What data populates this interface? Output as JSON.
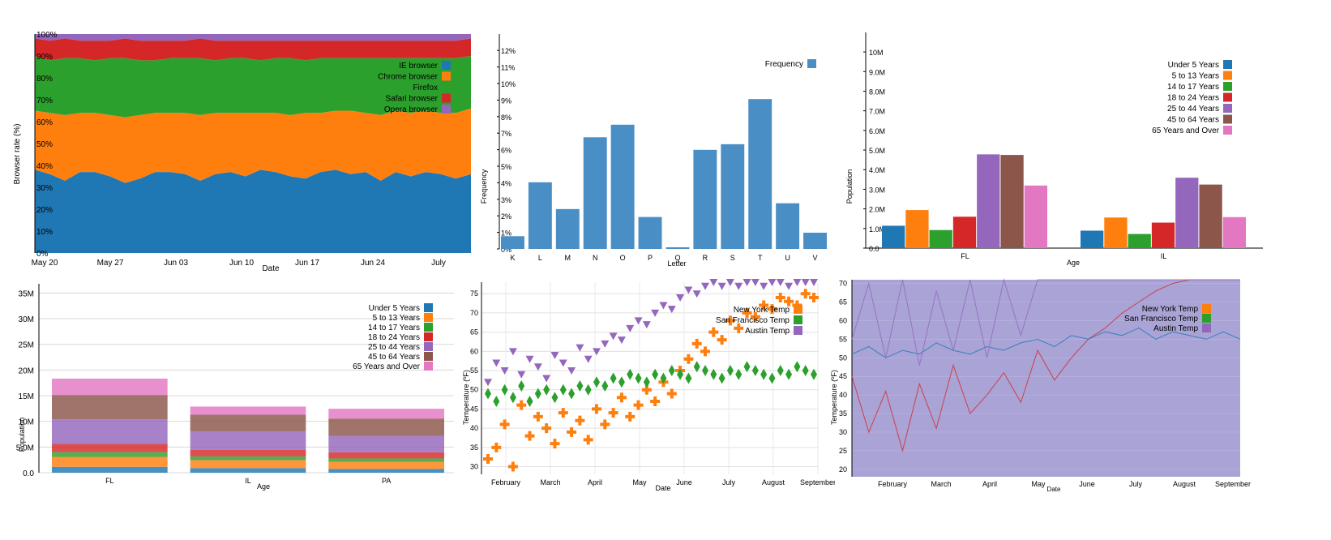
{
  "colors": {
    "blue": "#1f77b4",
    "orange": "#ff7f0e",
    "green": "#2ca02c",
    "red": "#d62728",
    "purple": "#9467bd",
    "brown": "#8c564b",
    "pink": "#e377c2",
    "bar_blue": "#4a8ec6",
    "area_purple": "#a9a3d6"
  },
  "chart_data": [
    {
      "id": "stacked-area",
      "type": "area",
      "xlabel": "Date",
      "ylabel": "Browser rate (%)",
      "x_ticks": [
        "May 20",
        "May 27",
        "Jun 03",
        "Jun 10",
        "Jun 17",
        "Jun 24",
        "July"
      ],
      "y_ticks": [
        "0%",
        "10%",
        "20%",
        "30%",
        "40%",
        "50%",
        "60%",
        "70%",
        "80%",
        "90%",
        "100%"
      ],
      "ylim": [
        0,
        100
      ],
      "series": [
        {
          "name": "IE browser",
          "values": [
            38,
            36,
            33,
            37,
            37,
            35,
            32,
            34,
            37,
            37,
            36,
            33,
            36,
            37,
            35,
            38,
            37,
            35,
            34,
            37,
            38,
            36,
            37,
            33,
            37,
            35,
            37,
            36,
            34,
            36
          ]
        },
        {
          "name": "Chrome browser",
          "values": [
            27,
            28,
            30,
            27,
            27,
            28,
            30,
            29,
            27,
            27,
            28,
            30,
            28,
            27,
            29,
            26,
            27,
            28,
            30,
            27,
            27,
            29,
            27,
            30,
            28,
            29,
            28,
            28,
            30,
            30
          ]
        },
        {
          "name": "Firefox",
          "values": [
            25,
            24,
            26,
            25,
            24,
            26,
            27,
            25,
            24,
            25,
            25,
            26,
            24,
            25,
            25,
            24,
            25,
            26,
            24,
            25,
            24,
            24,
            25,
            26,
            24,
            25,
            24,
            25,
            25,
            24
          ]
        },
        {
          "name": "Safari browser",
          "values": [
            8,
            9,
            9,
            8,
            9,
            8,
            9,
            9,
            9,
            8,
            8,
            9,
            9,
            8,
            8,
            9,
            8,
            8,
            9,
            8,
            8,
            8,
            8,
            8,
            8,
            8,
            8,
            8,
            8,
            8
          ]
        },
        {
          "name": "Opera browser",
          "values": [
            2,
            3,
            2,
            3,
            3,
            3,
            2,
            3,
            3,
            3,
            3,
            2,
            3,
            3,
            3,
            3,
            3,
            3,
            3,
            3,
            3,
            3,
            3,
            3,
            3,
            3,
            3,
            3,
            3,
            2
          ]
        }
      ],
      "legend": "top-right"
    },
    {
      "id": "letter-frequency",
      "type": "bar",
      "xlabel": "Letter",
      "ylabel": "Frequency",
      "categories": [
        "K",
        "L",
        "M",
        "N",
        "O",
        "P",
        "Q",
        "R",
        "S",
        "T",
        "U",
        "V"
      ],
      "values": [
        0.77,
        4.03,
        2.41,
        6.75,
        7.51,
        1.93,
        0.1,
        5.99,
        6.33,
        9.06,
        2.76,
        0.98
      ],
      "y_ticks": [
        "0%",
        "1%",
        "2%",
        "3%",
        "4%",
        "5%",
        "6%",
        "7%",
        "8%",
        "9%",
        "10%",
        "11%",
        "12%"
      ],
      "ylim": [
        0,
        12.5
      ],
      "series_name": "Frequency",
      "legend": "top-right"
    },
    {
      "id": "grouped-bar",
      "type": "bar",
      "xlabel": "Age",
      "ylabel": "Population",
      "categories": [
        "FL",
        "IL"
      ],
      "series": [
        {
          "name": "Under 5 Years",
          "values": [
            1.14,
            0.89
          ]
        },
        {
          "name": "5 to 13 Years",
          "values": [
            1.94,
            1.56
          ]
        },
        {
          "name": "14 to 17 Years",
          "values": [
            0.92,
            0.72
          ]
        },
        {
          "name": "18 to 24 Years",
          "values": [
            1.6,
            1.3
          ]
        },
        {
          "name": "25 to 44 Years",
          "values": [
            4.78,
            3.59
          ]
        },
        {
          "name": "45 to 64 Years",
          "values": [
            4.75,
            3.24
          ]
        },
        {
          "name": "65 Years and Over",
          "values": [
            3.19,
            1.58
          ]
        }
      ],
      "y_ticks": [
        "0.0",
        "1.0M",
        "2.0M",
        "3.0M",
        "4.0M",
        "5.0M",
        "6.0M",
        "7.0M",
        "8.0M",
        "9.0M",
        "10M"
      ],
      "ylim": [
        0,
        10.5
      ],
      "legend": "top-right"
    },
    {
      "id": "stacked-bar",
      "type": "bar",
      "xlabel": "Age",
      "ylabel": "Population",
      "categories": [
        "FL",
        "IL",
        "PA"
      ],
      "series": [
        {
          "name": "Under 5 Years",
          "values": [
            1.14,
            0.89,
            0.74
          ]
        },
        {
          "name": "5 to 13 Years",
          "values": [
            1.94,
            1.56,
            1.35
          ]
        },
        {
          "name": "14 to 17 Years",
          "values": [
            0.92,
            0.72,
            0.68
          ]
        },
        {
          "name": "18 to 24 Years",
          "values": [
            1.6,
            1.3,
            1.2
          ]
        },
        {
          "name": "25 to 44 Years",
          "values": [
            4.78,
            3.59,
            3.16
          ]
        },
        {
          "name": "45 to 64 Years",
          "values": [
            4.75,
            3.24,
            3.41
          ]
        },
        {
          "name": "65 Years and Over",
          "values": [
            3.19,
            1.58,
            1.91
          ]
        }
      ],
      "y_ticks": [
        "0.0",
        "5.0M",
        "10M",
        "15M",
        "20M",
        "25M",
        "30M",
        "35M"
      ],
      "ylim": [
        0,
        36
      ],
      "legend": "top-right"
    },
    {
      "id": "temperature-scatter",
      "type": "scatter",
      "xlabel": "Date",
      "ylabel": "Temperature (ºF)",
      "x_ticks": [
        "February",
        "March",
        "April",
        "May",
        "June",
        "July",
        "August",
        "September"
      ],
      "y_ticks": [
        "30",
        "35",
        "40",
        "45",
        "50",
        "55",
        "60",
        "65",
        "70",
        "75"
      ],
      "ylim": [
        28,
        78
      ],
      "series": [
        {
          "name": "New York Temp",
          "values": [
            32,
            35,
            41,
            30,
            46,
            38,
            43,
            40,
            36,
            44,
            39,
            42,
            37,
            45,
            41,
            44,
            48,
            43,
            46,
            50,
            47,
            52,
            49,
            55,
            58,
            62,
            60,
            65,
            63,
            68,
            66,
            70,
            69,
            72,
            71,
            74,
            73,
            72,
            75,
            74
          ]
        },
        {
          "name": "San Francisco Temp",
          "values": [
            49,
            47,
            50,
            48,
            51,
            47,
            49,
            50,
            48,
            50,
            49,
            51,
            50,
            52,
            51,
            53,
            52,
            54,
            53,
            52,
            54,
            53,
            55,
            54,
            53,
            56,
            55,
            54,
            53,
            55,
            54,
            56,
            55,
            54,
            53,
            55,
            54,
            56,
            55,
            54
          ]
        },
        {
          "name": "Austin Temp",
          "values": [
            52,
            57,
            55,
            60,
            54,
            58,
            56,
            53,
            59,
            57,
            55,
            61,
            58,
            60,
            62,
            64,
            63,
            66,
            68,
            67,
            70,
            72,
            71,
            74,
            76,
            75,
            77,
            78,
            77,
            78,
            77,
            78,
            78,
            77,
            78,
            78,
            77,
            78,
            78,
            78
          ]
        }
      ],
      "legend": "top-right"
    },
    {
      "id": "temperature-line",
      "type": "line",
      "xlabel": "Date",
      "ylabel": "Temperature (ºF)",
      "x_ticks": [
        "February",
        "March",
        "April",
        "May",
        "June",
        "July",
        "August",
        "September"
      ],
      "y_ticks": [
        "20",
        "25",
        "30",
        "35",
        "40",
        "45",
        "50",
        "55",
        "60",
        "65",
        "70"
      ],
      "ylim": [
        18,
        71
      ],
      "series": [
        {
          "name": "New York Temp",
          "values": [
            45,
            30,
            41,
            25,
            43,
            31,
            48,
            35,
            40,
            46,
            38,
            52,
            44,
            50,
            55,
            58,
            62,
            65,
            68,
            70,
            71,
            71,
            71,
            71
          ]
        },
        {
          "name": "San Francisco Temp",
          "values": [
            51,
            53,
            50,
            52,
            51,
            54,
            52,
            51,
            53,
            52,
            54,
            55,
            53,
            56,
            55,
            57,
            56,
            58,
            55,
            57,
            56,
            55,
            57,
            55
          ]
        },
        {
          "name": "Austin Temp",
          "values": [
            55,
            70,
            50,
            71,
            48,
            68,
            52,
            71,
            50,
            71,
            56,
            71,
            71,
            71,
            71,
            71,
            71,
            71,
            71,
            71,
            71,
            71,
            71,
            71
          ]
        }
      ],
      "legend": "top-right"
    }
  ]
}
